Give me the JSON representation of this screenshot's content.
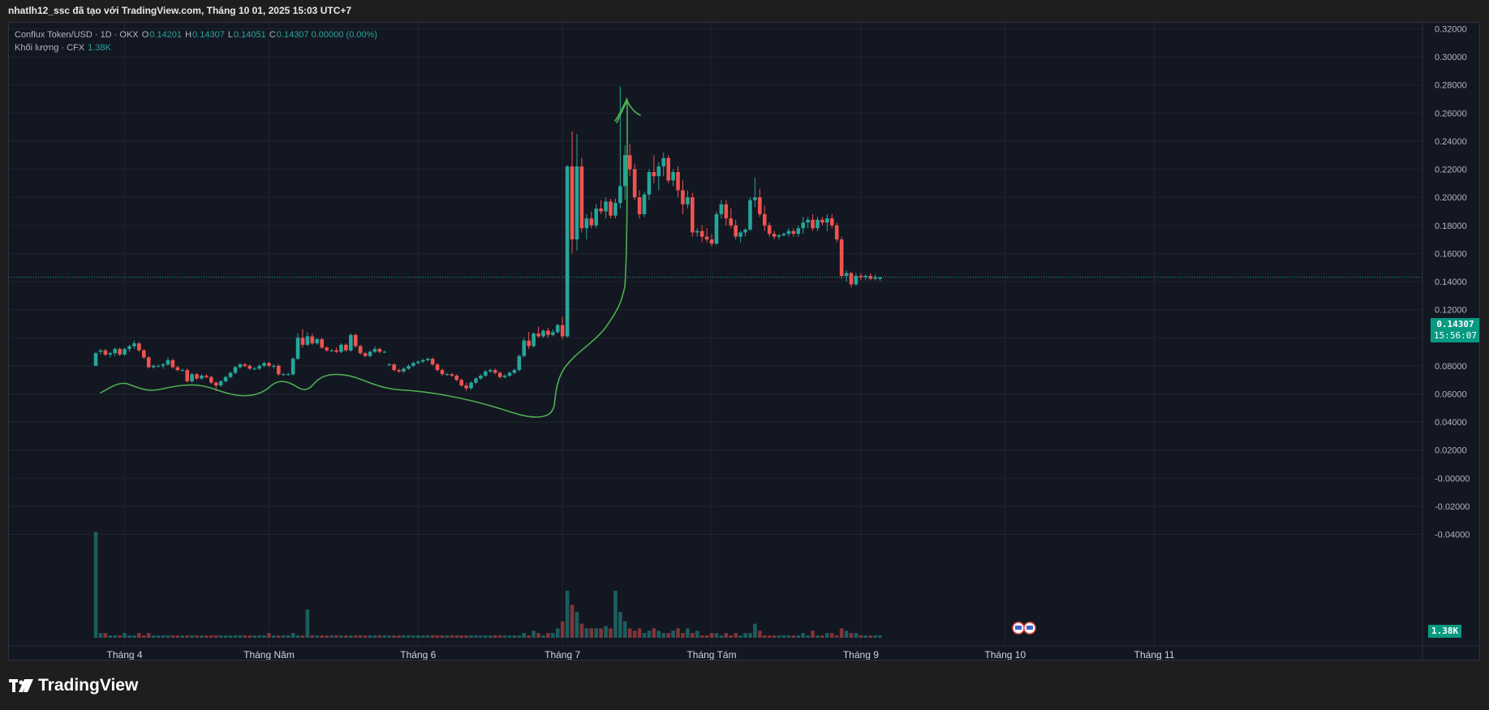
{
  "header": {
    "text": "nhatlh12_ssc đã tạo với TradingView.com, Tháng 10 01, 2025 15:03 UTC+7"
  },
  "legend": {
    "symbol": "Conflux Token/USD · 1D · OKX",
    "o_label": "O",
    "o_value": "0.14201",
    "h_label": "H",
    "h_value": "0.14307",
    "l_label": "L",
    "l_value": "0.14051",
    "c_label": "C",
    "c_value": "0.14307 0.00000 (0.00%)",
    "volume_label": "Khối lượng · CFX",
    "volume_value": "1.38K"
  },
  "last_price": {
    "value": "0.14307",
    "countdown": "15:56:07"
  },
  "volume_tag": "1.38K",
  "footer": {
    "brand": "TradingView"
  },
  "colors": {
    "up": "#26a69a",
    "down": "#ef5350",
    "annotation": "#4caf50",
    "background": "#131722",
    "grid": "#1f2430"
  },
  "chart_data": {
    "type": "candlestick",
    "title": "Conflux Token/USD · 1D · OKX",
    "y_ticks": [
      "0.32000",
      "0.30000",
      "0.28000",
      "0.26000",
      "0.24000",
      "0.22000",
      "0.20000",
      "0.18000",
      "0.16000",
      "0.14000",
      "0.12000",
      "0.10000",
      "0.08000",
      "0.06000",
      "0.04000",
      "0.02000",
      "-0.00000",
      "-0.02000",
      "-0.04000"
    ],
    "y_range": [
      -0.04,
      0.32
    ],
    "x_ticks": [
      "Tháng 4",
      "Tháng Năm",
      "Tháng 6",
      "Tháng 7",
      "Tháng Tám",
      "Tháng 9",
      "Tháng 10",
      "Tháng 11"
    ],
    "x_tick_days": [
      6,
      36,
      67,
      97,
      128,
      159,
      189,
      220
    ],
    "candles": [
      [
        0.08,
        0.09,
        0.08,
        0.089,
        45
      ],
      [
        0.09,
        0.092,
        0.088,
        0.091,
        2
      ],
      [
        0.091,
        0.092,
        0.087,
        0.088,
        2
      ],
      [
        0.088,
        0.09,
        0.086,
        0.089,
        1
      ],
      [
        0.089,
        0.093,
        0.087,
        0.092,
        1
      ],
      [
        0.092,
        0.093,
        0.087,
        0.088,
        1
      ],
      [
        0.088,
        0.093,
        0.087,
        0.092,
        2
      ],
      [
        0.092,
        0.095,
        0.09,
        0.094,
        1
      ],
      [
        0.094,
        0.098,
        0.092,
        0.096,
        1
      ],
      [
        0.096,
        0.097,
        0.09,
        0.091,
        2
      ],
      [
        0.091,
        0.092,
        0.085,
        0.086,
        1
      ],
      [
        0.086,
        0.087,
        0.078,
        0.079,
        2
      ],
      [
        0.079,
        0.081,
        0.078,
        0.08,
        1
      ],
      [
        0.08,
        0.081,
        0.079,
        0.08,
        1
      ],
      [
        0.08,
        0.082,
        0.078,
        0.081,
        1
      ],
      [
        0.081,
        0.086,
        0.08,
        0.084,
        1
      ],
      [
        0.084,
        0.085,
        0.078,
        0.079,
        1
      ],
      [
        0.079,
        0.08,
        0.076,
        0.077,
        1
      ],
      [
        0.077,
        0.078,
        0.076,
        0.077,
        1
      ],
      [
        0.077,
        0.078,
        0.068,
        0.069,
        1
      ],
      [
        0.069,
        0.075,
        0.068,
        0.074,
        1
      ],
      [
        0.074,
        0.075,
        0.07,
        0.071,
        1
      ],
      [
        0.071,
        0.074,
        0.07,
        0.073,
        1
      ],
      [
        0.073,
        0.074,
        0.071,
        0.072,
        1
      ],
      [
        0.072,
        0.073,
        0.067,
        0.068,
        1
      ],
      [
        0.068,
        0.069,
        0.062,
        0.066,
        1
      ],
      [
        0.066,
        0.07,
        0.065,
        0.069,
        1
      ],
      [
        0.069,
        0.073,
        0.068,
        0.072,
        1
      ],
      [
        0.072,
        0.076,
        0.071,
        0.075,
        1
      ],
      [
        0.075,
        0.08,
        0.074,
        0.079,
        1
      ],
      [
        0.079,
        0.082,
        0.078,
        0.081,
        1
      ],
      [
        0.081,
        0.082,
        0.079,
        0.08,
        1
      ],
      [
        0.08,
        0.081,
        0.077,
        0.078,
        1
      ],
      [
        0.078,
        0.079,
        0.077,
        0.078,
        1
      ],
      [
        0.078,
        0.081,
        0.077,
        0.08,
        1
      ],
      [
        0.08,
        0.083,
        0.079,
        0.082,
        1
      ],
      [
        0.082,
        0.083,
        0.079,
        0.08,
        2
      ],
      [
        0.08,
        0.081,
        0.078,
        0.08,
        1
      ],
      [
        0.08,
        0.081,
        0.073,
        0.074,
        1
      ],
      [
        0.074,
        0.075,
        0.073,
        0.074,
        1
      ],
      [
        0.074,
        0.075,
        0.073,
        0.074,
        1
      ],
      [
        0.074,
        0.086,
        0.073,
        0.085,
        2
      ],
      [
        0.085,
        0.103,
        0.084,
        0.1,
        1
      ],
      [
        0.1,
        0.106,
        0.093,
        0.095,
        1
      ],
      [
        0.095,
        0.104,
        0.094,
        0.101,
        12
      ],
      [
        0.101,
        0.103,
        0.095,
        0.096,
        1
      ],
      [
        0.096,
        0.1,
        0.095,
        0.099,
        1
      ],
      [
        0.099,
        0.1,
        0.092,
        0.093,
        1
      ],
      [
        0.093,
        0.094,
        0.09,
        0.091,
        1
      ],
      [
        0.091,
        0.092,
        0.09,
        0.091,
        1
      ],
      [
        0.091,
        0.093,
        0.089,
        0.09,
        1
      ],
      [
        0.09,
        0.096,
        0.089,
        0.095,
        1
      ],
      [
        0.095,
        0.096,
        0.09,
        0.091,
        1
      ],
      [
        0.091,
        0.103,
        0.09,
        0.102,
        1
      ],
      [
        0.102,
        0.103,
        0.093,
        0.094,
        1
      ],
      [
        0.094,
        0.095,
        0.088,
        0.089,
        1
      ],
      [
        0.089,
        0.09,
        0.086,
        0.087,
        1
      ],
      [
        0.087,
        0.091,
        0.086,
        0.09,
        1
      ],
      [
        0.09,
        0.094,
        0.089,
        0.092,
        1
      ],
      [
        0.092,
        0.093,
        0.089,
        0.09,
        1
      ],
      [
        0.09,
        0.091,
        0.089,
        0.09,
        1
      ],
      [
        0.081,
        0.082,
        0.08,
        0.081,
        1
      ],
      [
        0.081,
        0.082,
        0.076,
        0.077,
        1
      ],
      [
        0.077,
        0.078,
        0.075,
        0.076,
        1
      ],
      [
        0.076,
        0.079,
        0.075,
        0.078,
        1
      ],
      [
        0.078,
        0.081,
        0.077,
        0.08,
        1
      ],
      [
        0.08,
        0.083,
        0.079,
        0.082,
        1
      ],
      [
        0.082,
        0.084,
        0.081,
        0.083,
        1
      ],
      [
        0.083,
        0.085,
        0.082,
        0.084,
        1
      ],
      [
        0.084,
        0.086,
        0.083,
        0.085,
        1
      ],
      [
        0.085,
        0.086,
        0.08,
        0.081,
        1
      ],
      [
        0.081,
        0.082,
        0.076,
        0.077,
        1
      ],
      [
        0.077,
        0.078,
        0.073,
        0.074,
        1
      ],
      [
        0.074,
        0.075,
        0.073,
        0.074,
        1
      ],
      [
        0.074,
        0.075,
        0.072,
        0.073,
        1
      ],
      [
        0.073,
        0.074,
        0.069,
        0.07,
        1
      ],
      [
        0.07,
        0.071,
        0.065,
        0.066,
        1
      ],
      [
        0.066,
        0.068,
        0.062,
        0.064,
        1
      ],
      [
        0.064,
        0.069,
        0.063,
        0.068,
        1
      ],
      [
        0.068,
        0.072,
        0.067,
        0.071,
        1
      ],
      [
        0.071,
        0.074,
        0.07,
        0.073,
        1
      ],
      [
        0.073,
        0.077,
        0.072,
        0.076,
        1
      ],
      [
        0.076,
        0.078,
        0.075,
        0.077,
        1
      ],
      [
        0.077,
        0.078,
        0.074,
        0.075,
        1
      ],
      [
        0.075,
        0.076,
        0.071,
        0.072,
        1
      ],
      [
        0.072,
        0.074,
        0.071,
        0.073,
        1
      ],
      [
        0.073,
        0.076,
        0.072,
        0.075,
        1
      ],
      [
        0.075,
        0.078,
        0.074,
        0.077,
        1
      ],
      [
        0.077,
        0.088,
        0.076,
        0.087,
        1
      ],
      [
        0.087,
        0.1,
        0.086,
        0.098,
        2
      ],
      [
        0.098,
        0.104,
        0.092,
        0.094,
        1
      ],
      [
        0.094,
        0.104,
        0.093,
        0.103,
        3
      ],
      [
        0.103,
        0.108,
        0.1,
        0.101,
        2
      ],
      [
        0.101,
        0.106,
        0.1,
        0.105,
        1
      ],
      [
        0.105,
        0.107,
        0.1,
        0.102,
        2
      ],
      [
        0.102,
        0.106,
        0.101,
        0.104,
        2
      ],
      [
        0.104,
        0.11,
        0.103,
        0.109,
        4
      ],
      [
        0.109,
        0.115,
        0.099,
        0.101,
        7
      ],
      [
        0.101,
        0.223,
        0.1,
        0.222,
        20
      ],
      [
        0.222,
        0.247,
        0.16,
        0.17,
        14
      ],
      [
        0.17,
        0.245,
        0.162,
        0.222,
        11
      ],
      [
        0.222,
        0.228,
        0.175,
        0.178,
        6
      ],
      [
        0.178,
        0.188,
        0.17,
        0.185,
        4
      ],
      [
        0.185,
        0.19,
        0.178,
        0.18,
        4
      ],
      [
        0.18,
        0.195,
        0.178,
        0.192,
        4
      ],
      [
        0.192,
        0.198,
        0.188,
        0.19,
        4
      ],
      [
        0.19,
        0.2,
        0.185,
        0.197,
        5
      ],
      [
        0.197,
        0.199,
        0.185,
        0.187,
        4
      ],
      [
        0.187,
        0.199,
        0.185,
        0.196,
        20
      ],
      [
        0.196,
        0.279,
        0.192,
        0.208,
        11
      ],
      [
        0.208,
        0.237,
        0.198,
        0.23,
        7
      ],
      [
        0.23,
        0.238,
        0.215,
        0.22,
        4
      ],
      [
        0.22,
        0.224,
        0.198,
        0.2,
        3
      ],
      [
        0.2,
        0.205,
        0.185,
        0.188,
        4
      ],
      [
        0.188,
        0.204,
        0.186,
        0.202,
        2
      ],
      [
        0.202,
        0.22,
        0.198,
        0.218,
        3
      ],
      [
        0.218,
        0.23,
        0.21,
        0.215,
        4
      ],
      [
        0.215,
        0.225,
        0.205,
        0.222,
        3
      ],
      [
        0.222,
        0.232,
        0.215,
        0.228,
        2
      ],
      [
        0.228,
        0.23,
        0.21,
        0.212,
        2
      ],
      [
        0.212,
        0.22,
        0.208,
        0.218,
        3
      ],
      [
        0.218,
        0.222,
        0.2,
        0.205,
        4
      ],
      [
        0.205,
        0.212,
        0.188,
        0.195,
        2
      ],
      [
        0.195,
        0.205,
        0.192,
        0.2,
        4
      ],
      [
        0.2,
        0.203,
        0.172,
        0.175,
        2
      ],
      [
        0.175,
        0.178,
        0.172,
        0.176,
        3
      ],
      [
        0.176,
        0.18,
        0.168,
        0.172,
        1
      ],
      [
        0.172,
        0.178,
        0.168,
        0.17,
        1
      ],
      [
        0.17,
        0.174,
        0.165,
        0.167,
        2
      ],
      [
        0.167,
        0.19,
        0.166,
        0.188,
        2
      ],
      [
        0.188,
        0.198,
        0.185,
        0.195,
        1
      ],
      [
        0.195,
        0.198,
        0.18,
        0.185,
        2
      ],
      [
        0.185,
        0.192,
        0.178,
        0.18,
        1
      ],
      [
        0.18,
        0.184,
        0.17,
        0.172,
        2
      ],
      [
        0.172,
        0.176,
        0.168,
        0.175,
        1
      ],
      [
        0.175,
        0.178,
        0.172,
        0.177,
        2
      ],
      [
        0.177,
        0.2,
        0.176,
        0.198,
        2
      ],
      [
        0.198,
        0.214,
        0.193,
        0.2,
        6
      ],
      [
        0.2,
        0.206,
        0.186,
        0.188,
        3
      ],
      [
        0.188,
        0.194,
        0.176,
        0.18,
        1
      ],
      [
        0.18,
        0.182,
        0.172,
        0.174,
        1
      ],
      [
        0.174,
        0.176,
        0.17,
        0.172,
        1
      ],
      [
        0.172,
        0.174,
        0.17,
        0.173,
        1
      ],
      [
        0.173,
        0.175,
        0.172,
        0.174,
        1
      ],
      [
        0.174,
        0.178,
        0.172,
        0.176,
        1
      ],
      [
        0.176,
        0.178,
        0.172,
        0.174,
        1
      ],
      [
        0.174,
        0.18,
        0.172,
        0.178,
        1
      ],
      [
        0.178,
        0.186,
        0.174,
        0.182,
        2
      ],
      [
        0.182,
        0.186,
        0.178,
        0.184,
        1
      ],
      [
        0.184,
        0.188,
        0.176,
        0.178,
        3
      ],
      [
        0.178,
        0.186,
        0.176,
        0.184,
        1
      ],
      [
        0.184,
        0.186,
        0.18,
        0.182,
        1
      ],
      [
        0.182,
        0.188,
        0.176,
        0.185,
        2
      ],
      [
        0.185,
        0.188,
        0.178,
        0.18,
        2
      ],
      [
        0.18,
        0.182,
        0.168,
        0.17,
        1
      ],
      [
        0.17,
        0.172,
        0.142,
        0.144,
        4
      ],
      [
        0.144,
        0.148,
        0.14,
        0.146,
        3
      ],
      [
        0.146,
        0.147,
        0.136,
        0.138,
        2
      ],
      [
        0.138,
        0.146,
        0.137,
        0.144,
        2
      ],
      [
        0.144,
        0.146,
        0.141,
        0.143,
        1
      ],
      [
        0.143,
        0.145,
        0.141,
        0.144,
        1
      ],
      [
        0.144,
        0.146,
        0.141,
        0.142,
        1
      ],
      [
        0.142,
        0.145,
        0.141,
        0.143,
        1
      ],
      [
        0.142,
        0.1431,
        0.1405,
        0.1431,
        1
      ]
    ]
  }
}
